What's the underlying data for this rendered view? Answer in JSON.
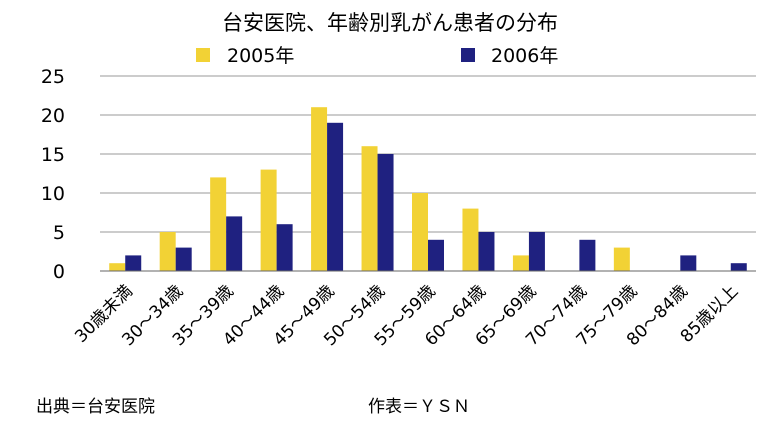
{
  "chart_data": {
    "type": "bar",
    "title": "台安医院、年齢別乳がん患者の分布",
    "xlabel": "",
    "ylabel": "",
    "ylim": [
      0,
      25
    ],
    "yticks": [
      0,
      5,
      10,
      15,
      20,
      25
    ],
    "grid": true,
    "legend_position": "top",
    "categories": [
      "30歳未満",
      "30～34歳",
      "35～39歳",
      "40～44歳",
      "45～49歳",
      "50～54歳",
      "55～59歳",
      "60～64歳",
      "65～69歳",
      "70～74歳",
      "75～79歳",
      "80～84歳",
      "85歳以上"
    ],
    "series": [
      {
        "name": "2005年",
        "color": "#F2D235",
        "values": [
          1,
          5,
          12,
          13,
          21,
          16,
          10,
          8,
          2,
          0,
          3,
          0,
          0
        ]
      },
      {
        "name": "2006年",
        "color": "#1F2180",
        "values": [
          2,
          3,
          7,
          6,
          19,
          15,
          4,
          5,
          5,
          4,
          0,
          2,
          1
        ]
      }
    ]
  },
  "footer": {
    "source": "出典＝台安医院",
    "author": "作表＝ＹＳＮ"
  }
}
